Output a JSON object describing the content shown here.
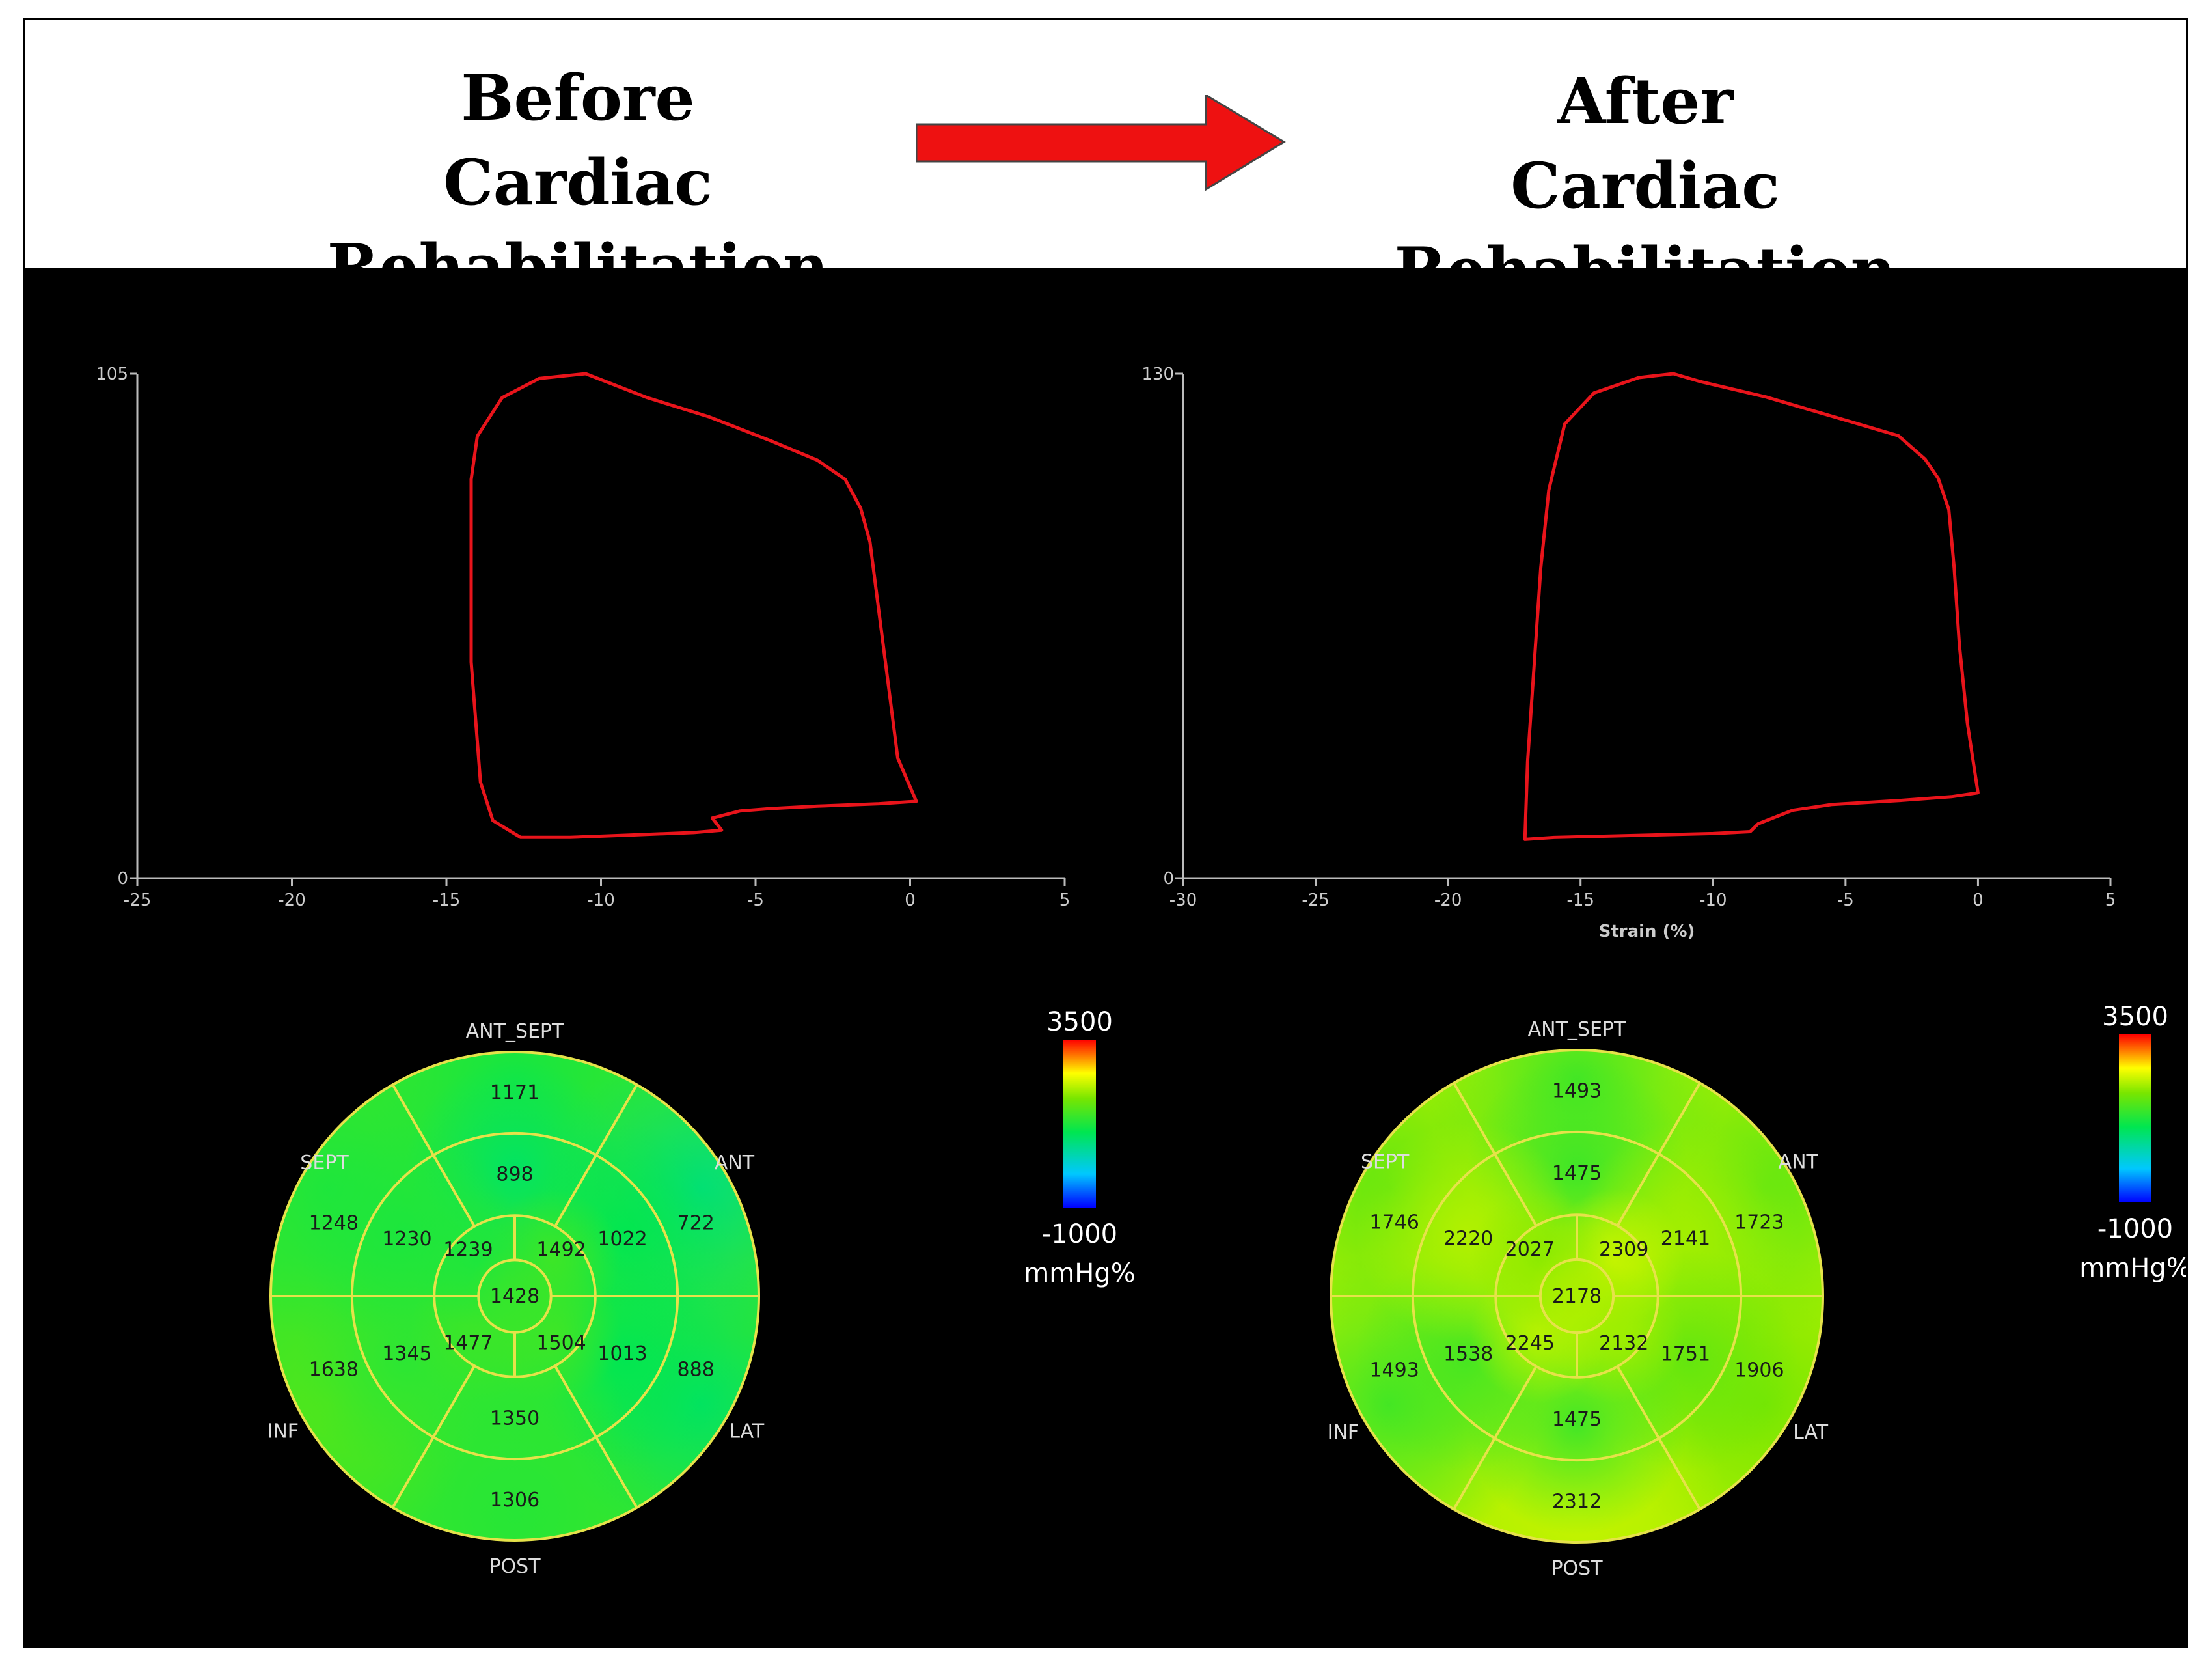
{
  "header": {
    "before_line1": "Before",
    "before_line2": "Cardiac Rehabilitation",
    "after_line1": "After",
    "after_line2": "Cardiac Rehabilitation",
    "arrow_color": "#ee1111"
  },
  "chart_data": [
    {
      "type": "line",
      "name": "before-pressure-strain-loop",
      "xlabel": "",
      "ylabel": "",
      "xlim": [
        -25,
        5
      ],
      "ylim": [
        0,
        105
      ],
      "x_ticks": [
        -25,
        -20,
        -15,
        -10,
        -5,
        0,
        5
      ],
      "y_ticks": [
        0,
        105
      ],
      "line_color": "#e8141b",
      "series": [
        {
          "x": [
            0.2,
            -0.4,
            -0.7,
            -1.0,
            -1.3,
            -1.6,
            -2.1,
            -3.0,
            -4.5,
            -6.5,
            -8.5,
            -10.5,
            -12.0,
            -13.2,
            -14.0,
            -14.2,
            -14.2,
            -13.9,
            -13.5,
            -12.6,
            -11.0,
            -9.0,
            -7.0,
            -6.1,
            -6.4,
            -5.5,
            -4.5,
            -3.0,
            -1.0,
            0.2
          ],
          "y": [
            16,
            25,
            40,
            55,
            70,
            77,
            83,
            87,
            91,
            96,
            100,
            105,
            104,
            100,
            92,
            83,
            45,
            20,
            12,
            8.5,
            8.5,
            9,
            9.5,
            10,
            12.5,
            14,
            14.5,
            15,
            15.5,
            16
          ]
        }
      ]
    },
    {
      "type": "line",
      "name": "after-pressure-strain-loop",
      "xlabel": "Strain (%)",
      "ylabel": "",
      "xlim": [
        -30,
        5
      ],
      "ylim": [
        0,
        130
      ],
      "x_ticks": [
        -30,
        -25,
        -20,
        -15,
        -10,
        -5,
        0,
        5
      ],
      "y_ticks": [
        0,
        130
      ],
      "line_color": "#e8141b",
      "series": [
        {
          "x": [
            0.0,
            -0.4,
            -0.7,
            -0.9,
            -1.1,
            -1.5,
            -2.0,
            -3.0,
            -5.0,
            -8.0,
            -10.5,
            -11.5,
            -12.8,
            -14.5,
            -15.6,
            -16.2,
            -16.5,
            -17.0,
            -17.1,
            -16.0,
            -13.0,
            -10.0,
            -8.6,
            -8.3,
            -7.0,
            -5.5,
            -3.0,
            -1.0,
            0.0
          ],
          "y": [
            22,
            40,
            60,
            80,
            95,
            103,
            108,
            114,
            118,
            124,
            128,
            130,
            129,
            125,
            117,
            100,
            80,
            30,
            10,
            10.5,
            11,
            11.5,
            12,
            14,
            17.5,
            19,
            20,
            21,
            22
          ]
        }
      ]
    },
    {
      "type": "heatmap",
      "name": "before-bullseye",
      "unit": "mmHg%",
      "scale": {
        "max": "3500",
        "min": "-1000"
      },
      "wall_labels": {
        "top": "ANT_SEPT",
        "upper_left": "SEPT",
        "upper_right": "ANT",
        "lower_left": "INF",
        "lower_right": "LAT",
        "bottom": "POST"
      },
      "segments": {
        "outer": [
          "1171",
          "722",
          "888",
          "1306",
          "1638",
          "1248"
        ],
        "middle": [
          "898",
          "1022",
          "1013",
          "1350",
          "1345",
          "1230"
        ],
        "inner": [
          "1492",
          "1504",
          "1477",
          "1239"
        ],
        "apex": "1428"
      },
      "values": {
        "outer": [
          1171,
          722,
          888,
          1306,
          1638,
          1248
        ],
        "middle": [
          898,
          1022,
          1013,
          1350,
          1345,
          1230
        ],
        "inner": [
          1492,
          1504,
          1477,
          1239
        ],
        "apex": 1428
      }
    },
    {
      "type": "heatmap",
      "name": "after-bullseye",
      "unit": "mmHg%",
      "scale": {
        "max": "3500",
        "min": "-1000"
      },
      "wall_labels": {
        "top": "ANT_SEPT",
        "upper_left": "SEPT",
        "upper_right": "ANT",
        "lower_left": "INF",
        "lower_right": "LAT",
        "bottom": "POST"
      },
      "segments": {
        "outer": [
          "1493",
          "1723",
          "1906",
          "2312",
          "1493",
          "1746"
        ],
        "middle": [
          "1475",
          "2141",
          "1751",
          "1475",
          "1538",
          "2220"
        ],
        "inner": [
          "2309",
          "2132",
          "2245",
          "2027"
        ],
        "apex": "2178"
      },
      "values": {
        "outer": [
          1493,
          1723,
          1906,
          2312,
          1493,
          1746
        ],
        "middle": [
          1475,
          2141,
          1751,
          1475,
          1538,
          2220
        ],
        "inner": [
          2309,
          2132,
          2245,
          2027
        ],
        "apex": 2178
      }
    }
  ]
}
